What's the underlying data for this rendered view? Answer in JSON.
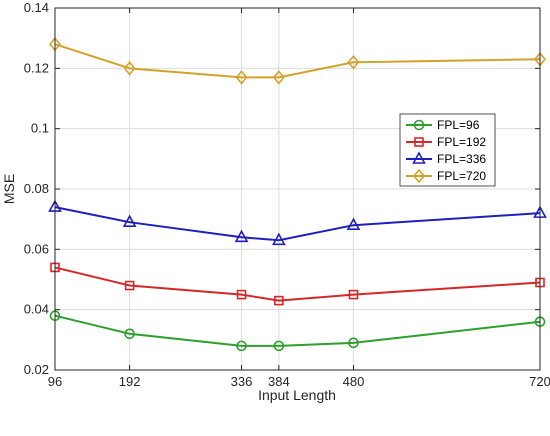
{
  "chart_data": {
    "type": "line",
    "xlabel": "Input Length",
    "ylabel": "MSE",
    "x": [
      96,
      192,
      336,
      384,
      480,
      720
    ],
    "xticks": [
      "96",
      "192",
      "336",
      "384",
      "480",
      "720"
    ],
    "xlim": [
      96,
      720
    ],
    "ylim": [
      0.02,
      0.14
    ],
    "yticks": [
      "0.02",
      "0.04",
      "0.06",
      "0.08",
      "0.1",
      "0.12",
      "0.14"
    ],
    "grid": true,
    "legend_position": "right-middle",
    "series": [
      {
        "name": "FPL=96",
        "color": "#2ca02c",
        "marker": "circle",
        "values": [
          0.038,
          0.032,
          0.028,
          0.028,
          0.029,
          0.036
        ]
      },
      {
        "name": "FPL=192",
        "color": "#d62728",
        "marker": "square",
        "values": [
          0.054,
          0.048,
          0.045,
          0.043,
          0.045,
          0.049
        ]
      },
      {
        "name": "FPL=336",
        "color": "#1f1fbf",
        "marker": "triangle",
        "values": [
          0.074,
          0.069,
          0.064,
          0.063,
          0.068,
          0.072
        ]
      },
      {
        "name": "FPL=720",
        "color": "#d4a22b",
        "marker": "diamond",
        "values": [
          0.128,
          0.12,
          0.117,
          0.117,
          0.122,
          0.123
        ]
      }
    ]
  }
}
